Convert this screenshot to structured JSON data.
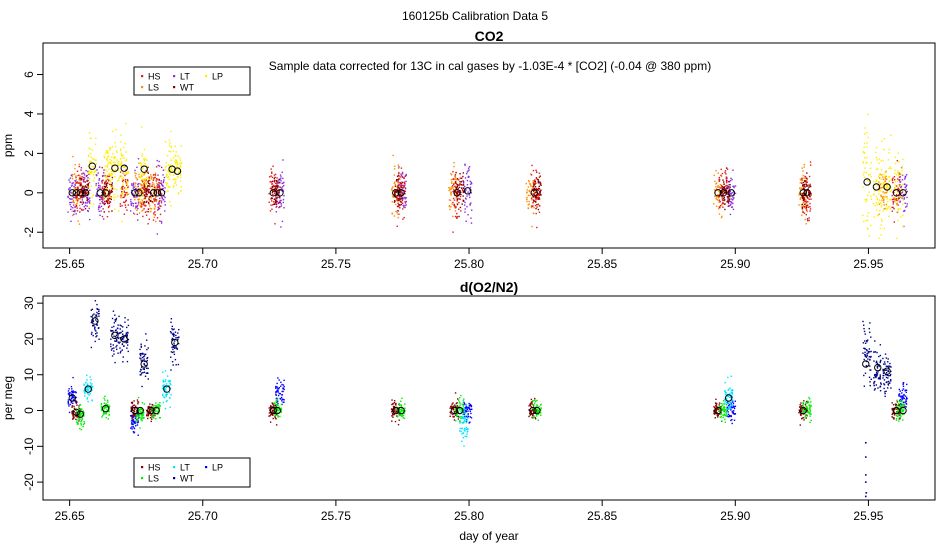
{
  "page_title": "160125b   Calibration Data 5",
  "colors": {
    "HS": "#e31a1c",
    "LS": "#ff8c00",
    "LT": "#8a2be2",
    "WT": "#ffee00",
    "LP": "#ffe600",
    "HS2": "#8b0000",
    "LS2": "#00ee00",
    "LT2": "#00e5ff",
    "WT2": "#00008b",
    "LP2": "#0000ff"
  },
  "chart_data": [
    {
      "type": "scatter",
      "title": "CO2",
      "ylabel": "ppm",
      "xlabel": "",
      "annotation": "Sample data corrected for 13C in cal gases by -1.03E-4 * [CO2] (-0.04 @ 380 ppm)",
      "xlim": [
        25.64,
        25.975
      ],
      "ylim": [
        -2.8,
        7.6
      ],
      "xticks": [
        "25.65",
        "25.70",
        "25.75",
        "25.80",
        "25.85",
        "25.90",
        "25.95"
      ],
      "yticks": [
        "-2",
        "0",
        "2",
        "4",
        "6"
      ],
      "legend": {
        "position": "top-left",
        "entries": [
          {
            "label": "HS",
            "color": "#e31a1c"
          },
          {
            "label": "LS",
            "color": "#ff8c00"
          },
          {
            "label": "LT",
            "color": "#8a2be2"
          },
          {
            "label": "WT",
            "color": "#8b0000"
          },
          {
            "label": "LP",
            "color": "#ffee00"
          }
        ]
      },
      "series": [
        {
          "name": "LT",
          "color": "#8a2be2",
          "clusters": [
            [
              25.651,
              0,
              0.6
            ],
            [
              25.656,
              0,
              0.6
            ],
            [
              25.6615,
              0,
              0.6
            ],
            [
              25.6745,
              0,
              0.6
            ],
            [
              25.6845,
              0,
              0.6
            ],
            [
              25.729,
              0,
              0.6
            ],
            [
              25.775,
              0,
              0.6
            ],
            [
              25.7995,
              0,
              0.6
            ],
            [
              25.8985,
              0,
              0.6
            ],
            [
              25.963,
              0,
              0.6
            ]
          ]
        },
        {
          "name": "LS",
          "color": "#ff8c00",
          "clusters": [
            [
              25.6525,
              0,
              0.6
            ],
            [
              25.676,
              0,
              0.6
            ],
            [
              25.6815,
              0,
              0.6
            ],
            [
              25.7725,
              0,
              0.6
            ],
            [
              25.794,
              0,
              0.6
            ],
            [
              25.823,
              0,
              0.6
            ],
            [
              25.8935,
              0,
              0.6
            ],
            [
              25.9255,
              0,
              0.6
            ],
            [
              25.9555,
              0,
              0.6
            ]
          ]
        },
        {
          "name": "HS",
          "color": "#e31a1c",
          "clusters": [
            [
              25.654,
              0,
              0.6
            ],
            [
              25.6635,
              0,
              0.6
            ],
            [
              25.6705,
              0,
              0.6
            ],
            [
              25.6785,
              0,
              0.6
            ],
            [
              25.683,
              0,
              0.6
            ],
            [
              25.7265,
              0,
              0.6
            ],
            [
              25.7745,
              0,
              0.6
            ],
            [
              25.7955,
              0,
              0.6
            ],
            [
              25.825,
              0,
              0.6
            ],
            [
              25.8955,
              0,
              0.6
            ],
            [
              25.927,
              0,
              0.6
            ],
            [
              25.9605,
              0,
              0.6
            ]
          ]
        },
        {
          "name": "WT",
          "color": "#8b0000",
          "clusters": [
            [
              25.6555,
              0,
              0.4
            ],
            [
              25.6645,
              0,
              0.4
            ],
            [
              25.6795,
              0,
              0.4
            ],
            [
              25.7275,
              0,
              0.4
            ],
            [
              25.7735,
              0,
              0.4
            ],
            [
              25.7965,
              0,
              0.4
            ],
            [
              25.8255,
              0,
              0.4
            ],
            [
              25.8965,
              0,
              0.4
            ],
            [
              25.9265,
              0,
              0.4
            ]
          ]
        },
        {
          "name": "LP",
          "color": "#ffee00",
          "clusters": [
            [
              25.6585,
              1.35,
              0.8
            ],
            [
              25.6645,
              1.25,
              0.8
            ],
            [
              25.667,
              1.2,
              0.8
            ],
            [
              25.6705,
              1.25,
              0.8
            ],
            [
              25.678,
              1.15,
              0.8
            ],
            [
              25.6875,
              1.2,
              0.8
            ],
            [
              25.6905,
              1.15,
              0.8
            ],
            [
              25.9495,
              0.55,
              1.3
            ],
            [
              25.9535,
              0.3,
              1.1
            ],
            [
              25.957,
              0.3,
              1.0
            ],
            [
              25.9615,
              0.2,
              0.9
            ]
          ]
        }
      ],
      "means": [
        [
          25.651,
          0
        ],
        [
          25.6525,
          0
        ],
        [
          25.654,
          0
        ],
        [
          25.656,
          0
        ],
        [
          25.6585,
          1.35
        ],
        [
          25.6615,
          0
        ],
        [
          25.6635,
          0
        ],
        [
          25.667,
          1.25
        ],
        [
          25.6705,
          1.25
        ],
        [
          25.6745,
          0
        ],
        [
          25.676,
          0
        ],
        [
          25.678,
          1.2
        ],
        [
          25.6815,
          0
        ],
        [
          25.683,
          0
        ],
        [
          25.6845,
          0
        ],
        [
          25.6885,
          1.2
        ],
        [
          25.6905,
          1.1
        ],
        [
          25.7265,
          0
        ],
        [
          25.729,
          0
        ],
        [
          25.7725,
          0
        ],
        [
          25.7745,
          0
        ],
        [
          25.7955,
          0
        ],
        [
          25.7995,
          0.1
        ],
        [
          25.8245,
          0
        ],
        [
          25.8935,
          0
        ],
        [
          25.8955,
          0
        ],
        [
          25.8985,
          0
        ],
        [
          25.9255,
          0
        ],
        [
          25.927,
          0
        ],
        [
          25.9495,
          0.55
        ],
        [
          25.953,
          0.3
        ],
        [
          25.957,
          0.3
        ],
        [
          25.9605,
          0
        ],
        [
          25.963,
          0
        ]
      ]
    },
    {
      "type": "scatter",
      "title": "d(O2/N2)",
      "ylabel": "per meg",
      "xlabel": "day of year",
      "xlim": [
        25.64,
        25.975
      ],
      "ylim": [
        -25,
        32
      ],
      "xticks": [
        "25.65",
        "25.70",
        "25.75",
        "25.80",
        "25.85",
        "25.90",
        "25.95"
      ],
      "yticks": [
        "-20",
        "-10",
        "0",
        "10",
        "20",
        "30"
      ],
      "legend": {
        "position": "bottom-left",
        "entries": [
          {
            "label": "HS",
            "color": "#8b0000"
          },
          {
            "label": "LS",
            "color": "#00ee00"
          },
          {
            "label": "LT",
            "color": "#00e5ff"
          },
          {
            "label": "WT",
            "color": "#00008b"
          },
          {
            "label": "LP",
            "color": "#0000ff"
          }
        ]
      },
      "series": [
        {
          "name": "LP",
          "color": "#0000ff",
          "clusters": [
            [
              25.651,
              3.5,
              1.6
            ],
            [
              25.6745,
              -3,
              1.8
            ],
            [
              25.729,
              5,
              2.0
            ],
            [
              25.7995,
              0,
              1.5
            ],
            [
              25.8985,
              0,
              1.5
            ],
            [
              25.963,
              3.5,
              1.8
            ]
          ]
        },
        {
          "name": "HS",
          "color": "#8b0000",
          "clusters": [
            [
              25.6525,
              -0.5,
              1.3
            ],
            [
              25.6745,
              0,
              1.3
            ],
            [
              25.6805,
              -0.5,
              1.3
            ],
            [
              25.7265,
              0,
              1.3
            ],
            [
              25.7725,
              0,
              1.3
            ],
            [
              25.7945,
              0,
              1.3
            ],
            [
              25.824,
              0,
              1.3
            ],
            [
              25.8935,
              0,
              1.3
            ],
            [
              25.9255,
              0,
              1.3
            ],
            [
              25.9605,
              0,
              1.3
            ]
          ]
        },
        {
          "name": "LS",
          "color": "#00ee00",
          "clusters": [
            [
              25.654,
              -1.5,
              1.5
            ],
            [
              25.6635,
              0.5,
              1.4
            ],
            [
              25.6765,
              -1,
              1.4
            ],
            [
              25.6825,
              0,
              1.4
            ],
            [
              25.728,
              0,
              1.4
            ],
            [
              25.7745,
              0,
              1.4
            ],
            [
              25.7965,
              0,
              1.4
            ],
            [
              25.8255,
              0,
              1.4
            ],
            [
              25.8955,
              0,
              1.4
            ],
            [
              25.927,
              0,
              1.4
            ],
            [
              25.962,
              0,
              1.4
            ]
          ]
        },
        {
          "name": "LT",
          "color": "#00e5ff",
          "clusters": [
            [
              25.657,
              6,
              1.5
            ],
            [
              25.6865,
              6,
              2.0
            ],
            [
              25.798,
              -3,
              2.5
            ],
            [
              25.8975,
              3.5,
              2.2
            ]
          ]
        },
        {
          "name": "WT",
          "color": "#00008b",
          "clusters": [
            [
              25.6595,
              25,
              3.0
            ],
            [
              25.667,
              21,
              3.0
            ],
            [
              25.6705,
              20,
              3.0
            ],
            [
              25.678,
              14,
              3.0
            ],
            [
              25.6895,
              19,
              3.0
            ],
            [
              25.9495,
              16,
              4.0
            ],
            [
              25.9535,
              11,
              3.0
            ],
            [
              25.957,
              10,
              3.0
            ]
          ]
        }
      ],
      "outliers": [
        [
          25.949,
          -13
        ],
        [
          25.949,
          -18
        ],
        [
          25.949,
          -20
        ],
        [
          25.9492,
          -23
        ],
        [
          25.949,
          -24
        ],
        [
          25.949,
          -9
        ]
      ],
      "means": [
        [
          25.651,
          3.5
        ],
        [
          25.6525,
          -0.5
        ],
        [
          25.654,
          -1
        ],
        [
          25.657,
          6
        ],
        [
          25.6595,
          25
        ],
        [
          25.6635,
          0.5
        ],
        [
          25.667,
          21
        ],
        [
          25.6705,
          20
        ],
        [
          25.6745,
          0
        ],
        [
          25.6765,
          0
        ],
        [
          25.678,
          13
        ],
        [
          25.6805,
          0
        ],
        [
          25.6825,
          0
        ],
        [
          25.6865,
          6
        ],
        [
          25.6895,
          19
        ],
        [
          25.7265,
          0
        ],
        [
          25.728,
          0
        ],
        [
          25.7725,
          0
        ],
        [
          25.7745,
          0
        ],
        [
          25.7945,
          0
        ],
        [
          25.7965,
          0
        ],
        [
          25.824,
          0
        ],
        [
          25.8255,
          0
        ],
        [
          25.8935,
          0
        ],
        [
          25.8975,
          3.5
        ],
        [
          25.9255,
          0
        ],
        [
          25.949,
          13
        ],
        [
          25.9535,
          12
        ],
        [
          25.957,
          11
        ],
        [
          25.9605,
          0
        ],
        [
          25.963,
          0
        ]
      ]
    }
  ]
}
